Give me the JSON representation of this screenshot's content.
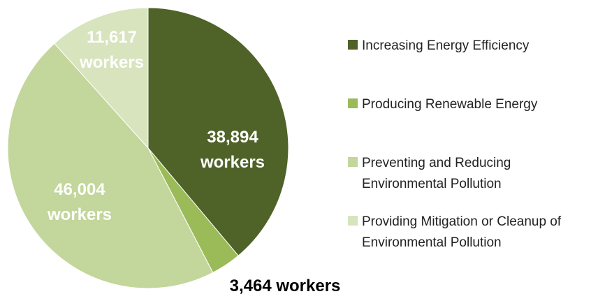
{
  "chart_data": {
    "type": "pie",
    "title": "",
    "start_angle_deg": 0,
    "direction": "clockwise",
    "legend_placement": "right",
    "slices": [
      {
        "category": "Increasing Energy Efficiency",
        "value": 38894,
        "label_lines": [
          "38,894",
          "workers"
        ],
        "color": "#4f6228",
        "label_color": "#ffffff"
      },
      {
        "category": "Producing Renewable Energy",
        "value": 3464,
        "label_lines": [
          "3,464 workers"
        ],
        "color": "#9bbb59",
        "label_color": "#000000"
      },
      {
        "category": "Preventing and Reducing Environmental Pollution",
        "value": 46004,
        "label_lines": [
          "46,004",
          "workers"
        ],
        "color": "#c3d69b",
        "label_color": "#ffffff"
      },
      {
        "category": "Providing Mitigation or Cleanup of Environmental Pollution",
        "value": 11617,
        "label_lines": [
          "11,617",
          "workers"
        ],
        "color": "#d7e4bd",
        "label_color": "#ffffff"
      }
    ],
    "legend": [
      {
        "lines": [
          "Increasing Energy Efficiency"
        ],
        "color": "#4f6228"
      },
      {
        "lines": [
          "Producing Renewable Energy"
        ],
        "color": "#9bbb59"
      },
      {
        "lines": [
          "Preventing and Reducing",
          "Environmental Pollution"
        ],
        "color": "#c3d69b"
      },
      {
        "lines": [
          "Providing Mitigation or Cleanup of",
          "Environmental Pollution"
        ],
        "color": "#d7e4bd"
      }
    ]
  }
}
